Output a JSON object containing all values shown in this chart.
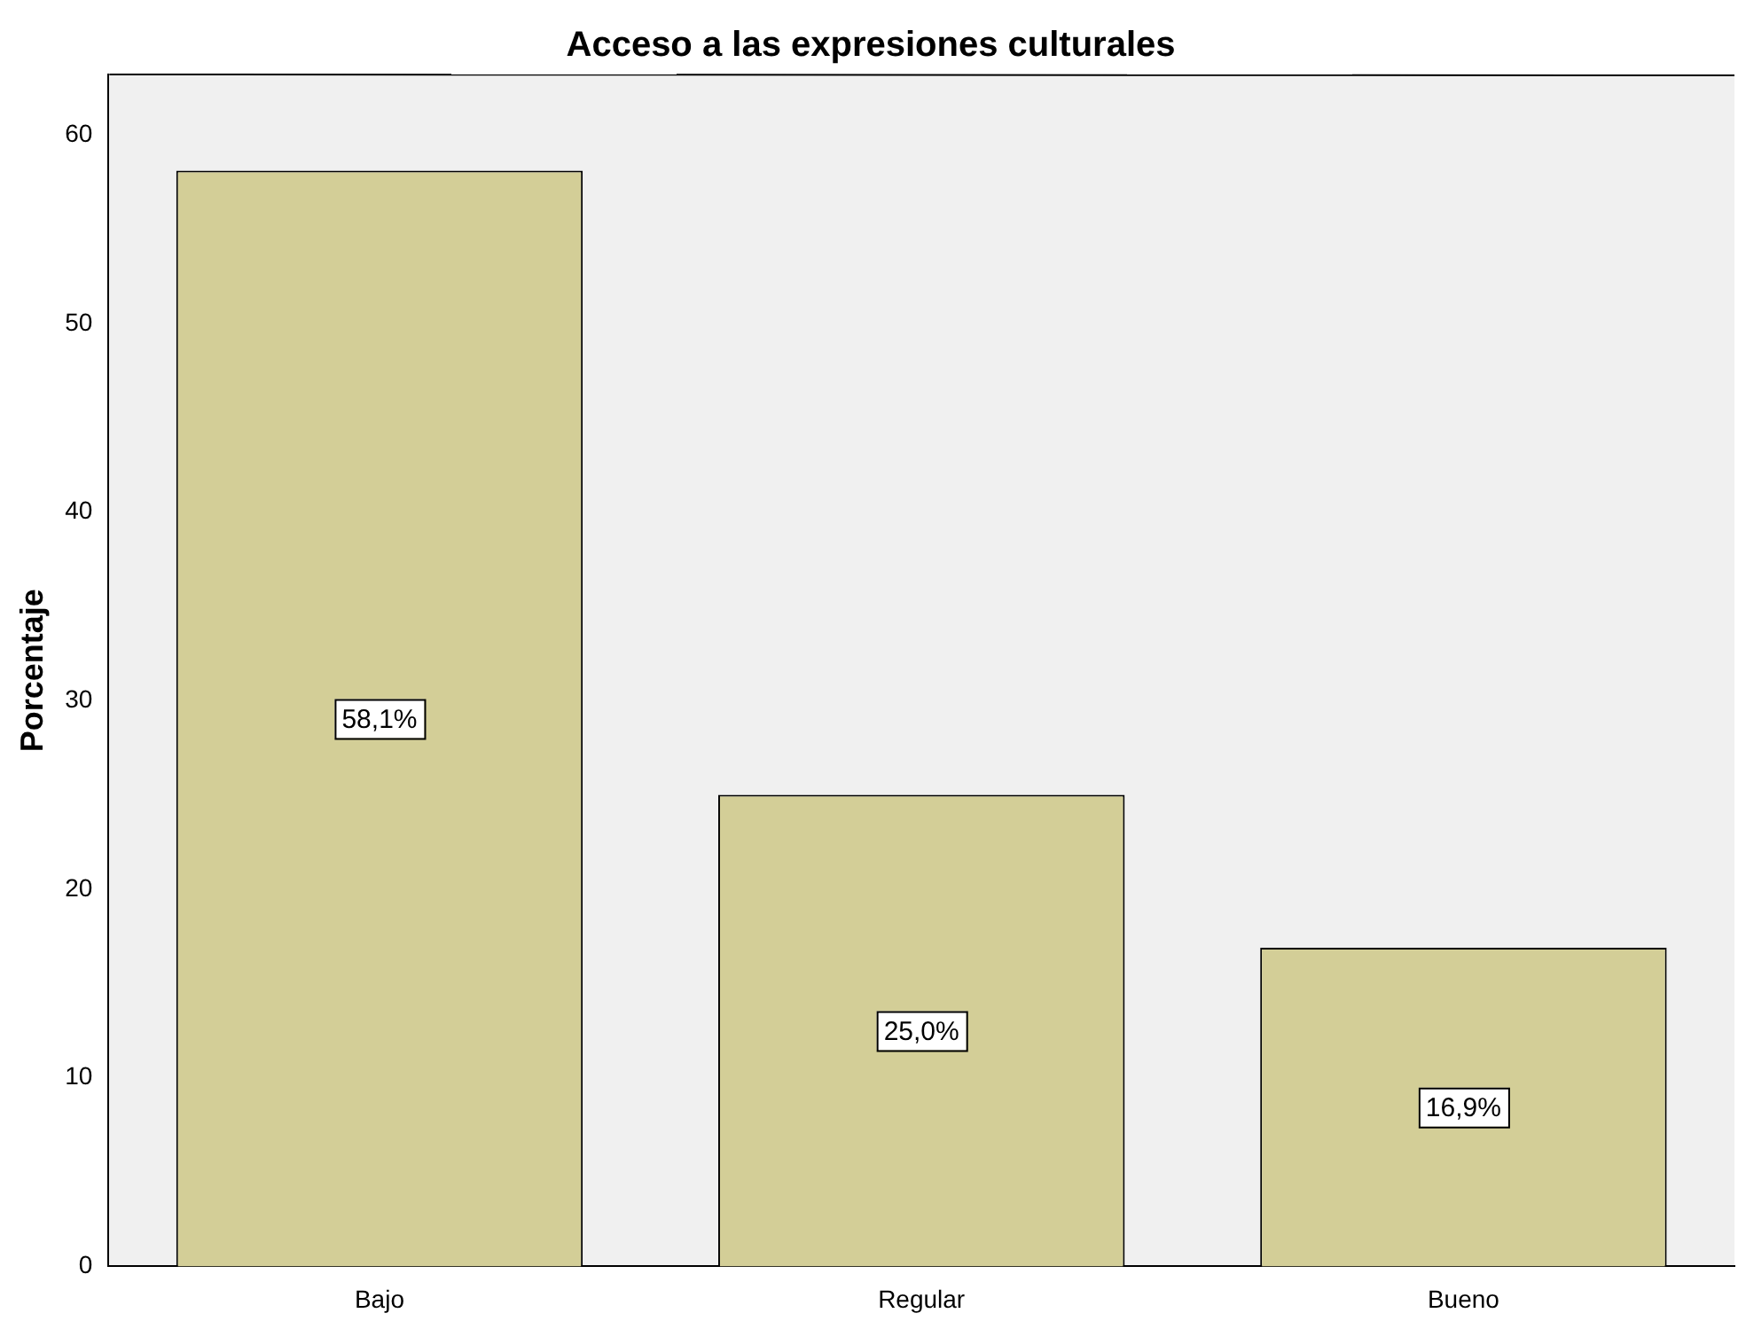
{
  "chart_data": {
    "type": "bar",
    "title": "Acceso a las expresiones culturales",
    "ylabel": "Porcentaje",
    "categories": [
      "Bajo",
      "Regular",
      "Bueno"
    ],
    "values": [
      58.1,
      25.0,
      16.9
    ],
    "value_labels": [
      "58,1%",
      "25,0%",
      "16,9%"
    ],
    "color": "#d3ce97",
    "ylim": [
      0,
      63.2
    ],
    "yticks": [
      0,
      10,
      20,
      30,
      40,
      50,
      60
    ],
    "grid": false,
    "legend": false
  }
}
